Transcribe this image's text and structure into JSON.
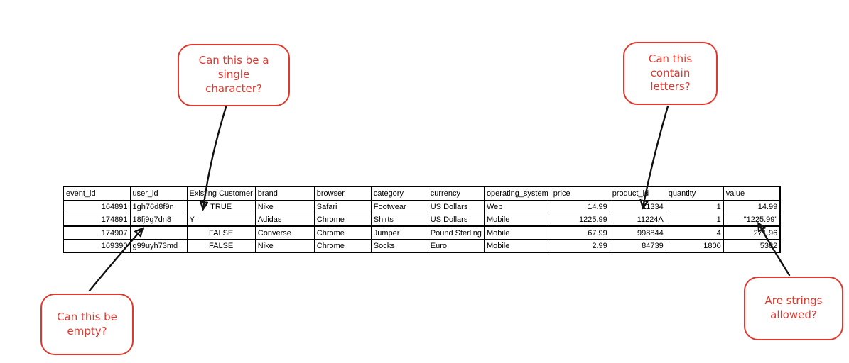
{
  "table": {
    "columns": [
      {
        "label": "event_id"
      },
      {
        "label": "user_id"
      },
      {
        "label": "Existing Customer"
      },
      {
        "label": "brand"
      },
      {
        "label": "browser"
      },
      {
        "label": "category"
      },
      {
        "label": "currency"
      },
      {
        "label": "operating_system"
      },
      {
        "label": "price"
      },
      {
        "label": "product_id"
      },
      {
        "label": "quantity"
      },
      {
        "label": "value"
      }
    ],
    "rows": [
      [
        "164891",
        "1gh76d8f9n",
        "TRUE",
        "Nike",
        "Safari",
        "Footwear",
        "US Dollars",
        "Web",
        "14.99",
        "11334",
        "1",
        "14.99"
      ],
      [
        "174891",
        "18fj9g7dn8",
        "Y",
        "Adidas",
        "Chrome",
        "Shirts",
        "US Dollars",
        "Mobile",
        "1225.99",
        "11224A",
        "1",
        "\"1225.99\""
      ],
      [
        "174907",
        "",
        "FALSE",
        "Converse",
        "Chrome",
        "Jumper",
        "Pound Sterling",
        "Mobile",
        "67.99",
        "998844",
        "4",
        "271.96"
      ],
      [
        "169390",
        "g99uyh73md",
        "FALSE",
        "Nike",
        "Chrome",
        "Socks",
        "Euro",
        "Mobile",
        "2.99",
        "84739",
        "1800",
        "5382"
      ]
    ]
  },
  "callouts": {
    "single_character": "Can this be a\nsingle\ncharacter?",
    "contain_letters": "Can this\ncontain\nletters?",
    "empty": "Can this be\nempty?",
    "strings_allowed": "Are strings\nallowed?"
  },
  "colors": {
    "annotation_red": "#e0382d",
    "arrow_ink": "#111111"
  }
}
